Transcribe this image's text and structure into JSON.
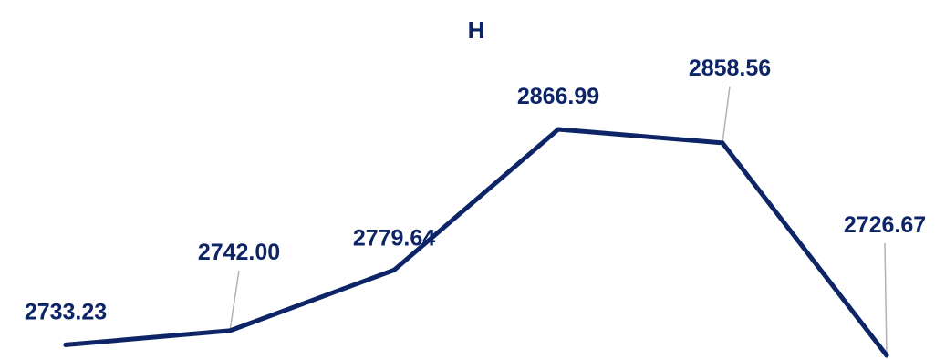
{
  "chart_data": {
    "type": "line",
    "title": "H",
    "xlabel": "",
    "ylabel": "",
    "ylim": [
      2726.67,
      2866.99
    ],
    "grid": false,
    "legend": "none",
    "series": [
      {
        "values": [
          2733.23,
          2742.0,
          2779.64,
          2866.99,
          2858.56,
          2726.67
        ],
        "labels": [
          "2733.23",
          "2742.00",
          "2779.64",
          "2866.99",
          "2858.56",
          "2726.67"
        ]
      }
    ]
  },
  "colors": {
    "line": "#0d2566",
    "text": "#0d2566",
    "leader": "#b3b3b3",
    "background": "#ffffff"
  }
}
